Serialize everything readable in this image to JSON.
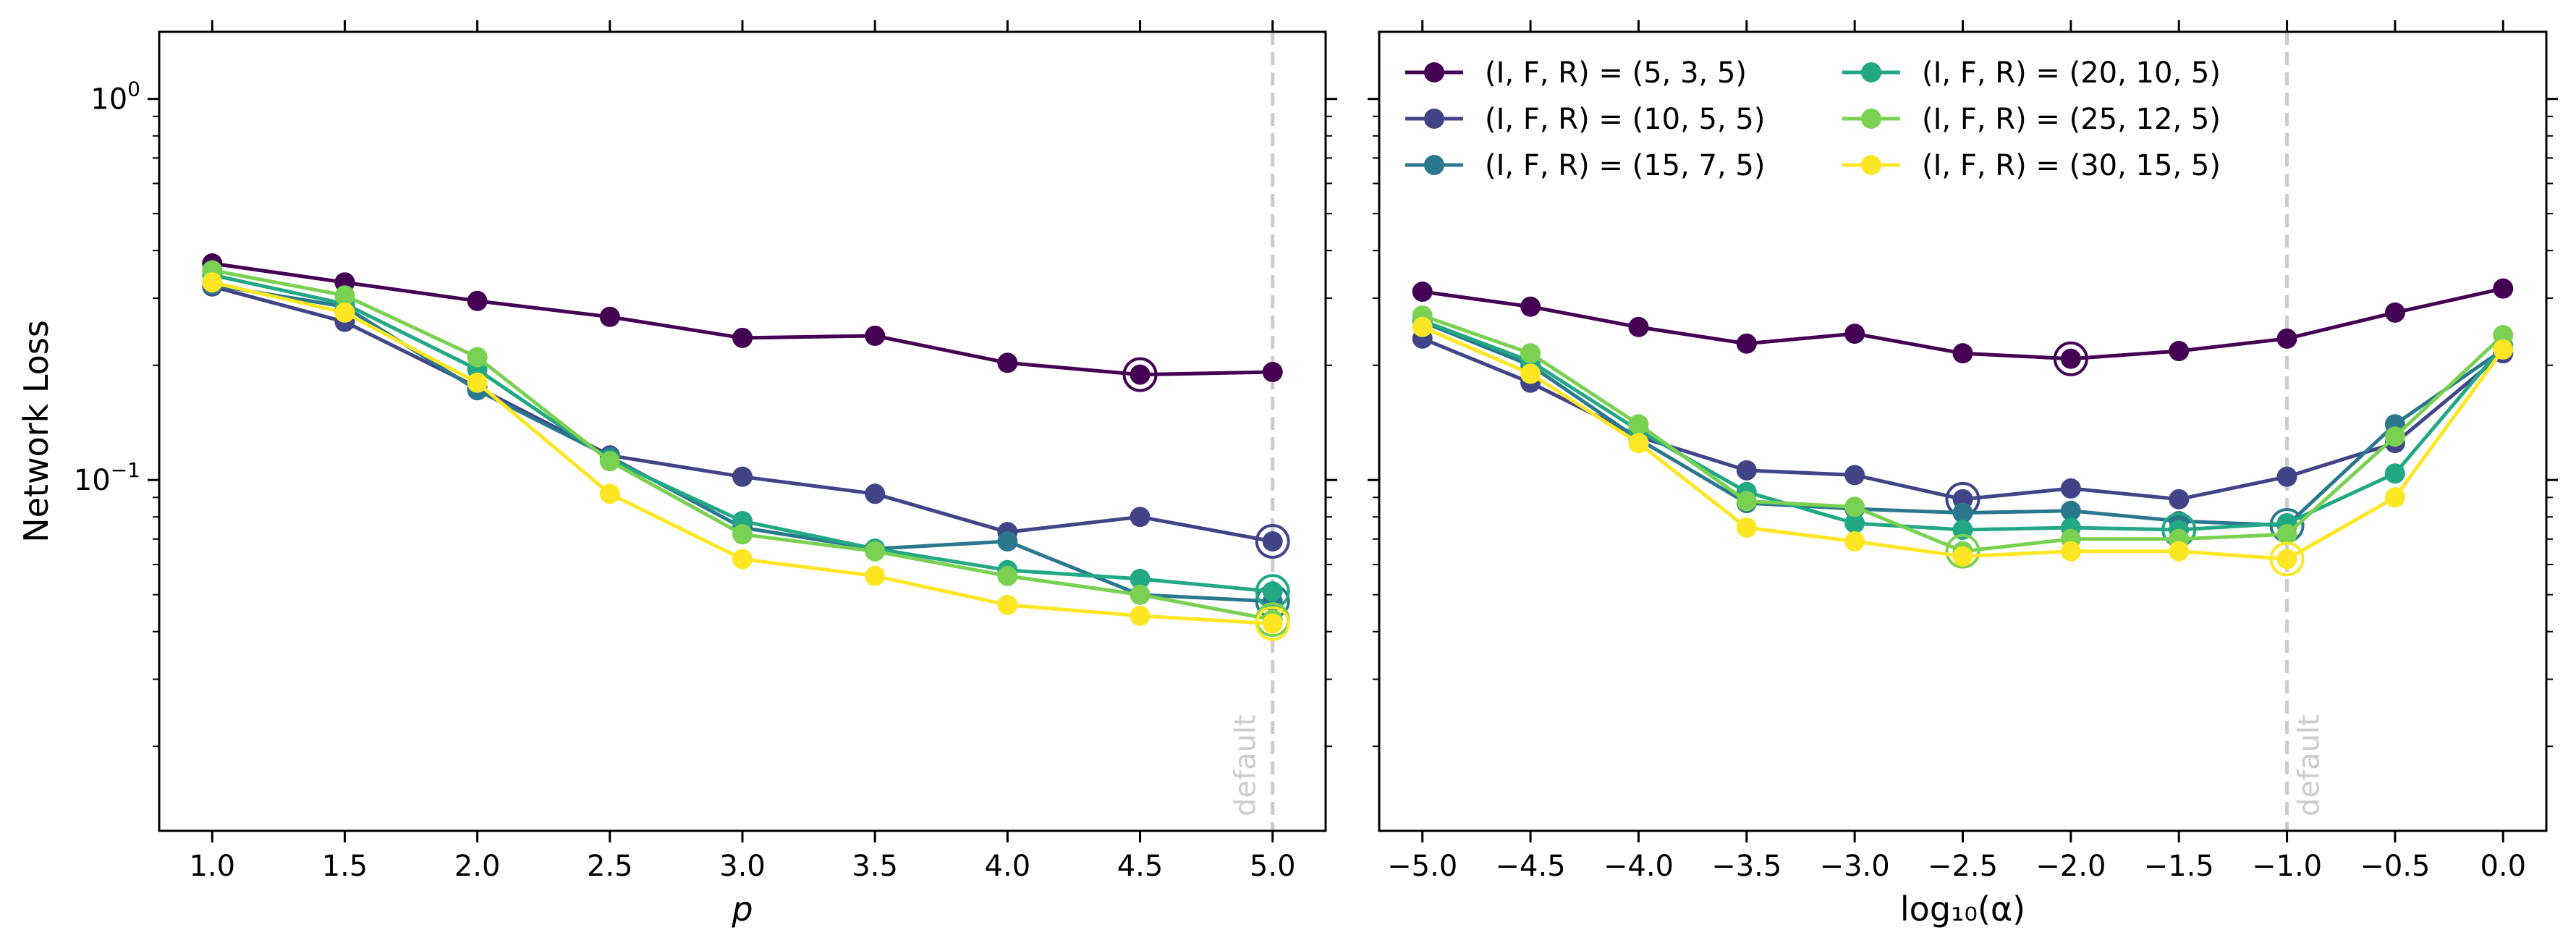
{
  "chart_data": [
    {
      "type": "line",
      "title": "",
      "xlabel": "p",
      "ylabel": "Network Loss",
      "xlim": [
        0.8,
        5.2
      ],
      "ylim": [
        0.012,
        1.5
      ],
      "yscale": "log",
      "grid": false,
      "x": [
        1.0,
        1.5,
        2.0,
        2.5,
        3.0,
        3.5,
        4.0,
        4.5,
        5.0
      ],
      "xtick_values": [
        1.0,
        1.5,
        2.0,
        2.5,
        3.0,
        3.5,
        4.0,
        4.5,
        5.0
      ],
      "xtick_labels": [
        "1.0",
        "1.5",
        "2.0",
        "2.5",
        "3.0",
        "3.5",
        "4.0",
        "4.5",
        "5.0"
      ],
      "ytick_values": [
        0.1,
        1.0
      ],
      "ytick_base": "10",
      "ytick_exponents": [
        "−1",
        "0"
      ],
      "default_line": {
        "x": 5.0,
        "label": "default"
      },
      "series": [
        {
          "name": "(I, F, R) = (5, 3, 5)",
          "color": "#440154",
          "values": [
            0.37,
            0.33,
            0.295,
            0.268,
            0.236,
            0.239,
            0.203,
            0.189,
            0.192
          ],
          "best_index": 7
        },
        {
          "name": "(I, F, R) = (10, 5, 5)",
          "color": "#414487",
          "values": [
            0.322,
            0.26,
            0.175,
            0.116,
            0.102,
            0.092,
            0.073,
            0.08,
            0.069
          ],
          "best_index": 8
        },
        {
          "name": "(I, F, R) = (15, 7, 5)",
          "color": "#2a788e",
          "values": [
            0.325,
            0.285,
            0.172,
            0.115,
            0.075,
            0.066,
            0.069,
            0.05,
            0.048
          ],
          "best_index": 8
        },
        {
          "name": "(I, F, R) = (20, 10, 5)",
          "color": "#22a884",
          "values": [
            0.345,
            0.29,
            0.195,
            0.113,
            0.078,
            0.066,
            0.058,
            0.055,
            0.051
          ],
          "best_index": 8
        },
        {
          "name": "(I, F, R) = (25, 12, 5)",
          "color": "#7ad151",
          "values": [
            0.355,
            0.305,
            0.21,
            0.112,
            0.072,
            0.065,
            0.056,
            0.05,
            0.043
          ],
          "best_index": 8
        },
        {
          "name": "(I, F, R) = (30, 15, 5)",
          "color": "#fde725",
          "values": [
            0.33,
            0.275,
            0.18,
            0.092,
            0.062,
            0.056,
            0.047,
            0.044,
            0.042
          ],
          "best_index": 8
        }
      ]
    },
    {
      "type": "line",
      "title": "",
      "xlabel": "log₁₀(α)",
      "ylabel": "",
      "xlim": [
        -5.2,
        0.2
      ],
      "ylim": [
        0.012,
        1.5
      ],
      "yscale": "log",
      "grid": false,
      "legend_position": "top-left",
      "x": [
        -5.0,
        -4.5,
        -4.0,
        -3.5,
        -3.0,
        -2.5,
        -2.0,
        -1.5,
        -1.0,
        -0.5,
        0.0
      ],
      "xtick_values": [
        -5.0,
        -4.5,
        -4.0,
        -3.5,
        -3.0,
        -2.5,
        -2.0,
        -1.5,
        -1.0,
        -0.5,
        0.0
      ],
      "xtick_labels": [
        "−5.0",
        "−4.5",
        "−4.0",
        "−3.5",
        "−3.0",
        "−2.5",
        "−2.0",
        "−1.5",
        "−1.0",
        "−0.5",
        "0.0"
      ],
      "default_line": {
        "x": -1.0,
        "label": "default"
      },
      "series": [
        {
          "name": "(I, F, R) = (5, 3, 5)",
          "color": "#440154",
          "values": [
            0.312,
            0.285,
            0.252,
            0.228,
            0.242,
            0.215,
            0.208,
            0.218,
            0.235,
            0.275,
            0.318
          ],
          "best_index": 6
        },
        {
          "name": "(I, F, R) = (10, 5, 5)",
          "color": "#414487",
          "values": [
            0.235,
            0.18,
            0.13,
            0.106,
            0.103,
            0.089,
            0.095,
            0.089,
            0.102,
            0.125,
            0.215
          ],
          "best_index": 5
        },
        {
          "name": "(I, F, R) = (15, 7, 5)",
          "color": "#2a788e",
          "values": [
            0.26,
            0.2,
            0.128,
            0.087,
            0.084,
            0.082,
            0.083,
            0.078,
            0.076,
            0.14,
            0.22
          ],
          "best_index": 8
        },
        {
          "name": "(I, F, R) = (20, 10, 5)",
          "color": "#22a884",
          "values": [
            0.262,
            0.205,
            0.135,
            0.093,
            0.077,
            0.074,
            0.075,
            0.074,
            0.077,
            0.104,
            0.225
          ],
          "best_index": 7
        },
        {
          "name": "(I, F, R) = (25, 12, 5)",
          "color": "#7ad151",
          "values": [
            0.27,
            0.215,
            0.14,
            0.088,
            0.085,
            0.065,
            0.07,
            0.07,
            0.072,
            0.13,
            0.24
          ],
          "best_index": 5
        },
        {
          "name": "(I, F, R) = (30, 15, 5)",
          "color": "#fde725",
          "values": [
            0.252,
            0.19,
            0.125,
            0.075,
            0.069,
            0.063,
            0.065,
            0.065,
            0.062,
            0.09,
            0.22
          ],
          "best_index": 8
        }
      ]
    }
  ]
}
